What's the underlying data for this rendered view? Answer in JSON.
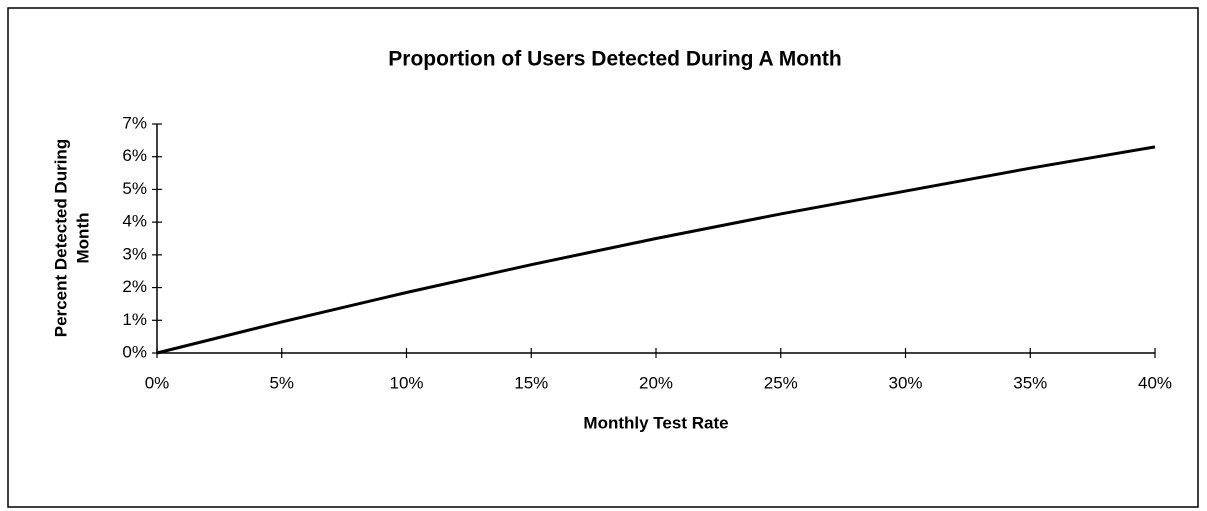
{
  "chart_data": {
    "type": "line",
    "title": "Proportion of Users Detected During A Month",
    "xlabel": "Monthly Test Rate",
    "ylabel": [
      "Percent Detected During",
      "Month"
    ],
    "x": [
      0,
      5,
      10,
      15,
      20,
      25,
      30,
      35,
      40
    ],
    "values": [
      0,
      0.95,
      1.85,
      2.7,
      3.5,
      4.25,
      4.95,
      5.65,
      6.3
    ],
    "color": "#000000",
    "xlim": [
      0,
      40
    ],
    "xticks": [
      {
        "value": 0,
        "label": "0%"
      },
      {
        "value": 5,
        "label": "5%"
      },
      {
        "value": 10,
        "label": "10%"
      },
      {
        "value": 15,
        "label": "15%"
      },
      {
        "value": 20,
        "label": "20%"
      },
      {
        "value": 25,
        "label": "25%"
      },
      {
        "value": 30,
        "label": "30%"
      },
      {
        "value": 35,
        "label": "35%"
      },
      {
        "value": 40,
        "label": "40%"
      }
    ],
    "ylim": [
      0,
      7
    ],
    "yticks": [
      {
        "value": 0,
        "label": "0%"
      },
      {
        "value": 1,
        "label": "1%"
      },
      {
        "value": 2,
        "label": "2%"
      },
      {
        "value": 3,
        "label": "3%"
      },
      {
        "value": 4,
        "label": "4%"
      },
      {
        "value": 5,
        "label": "5%"
      },
      {
        "value": 6,
        "label": "6%"
      },
      {
        "value": 7,
        "label": "7%"
      }
    ],
    "grid": false
  }
}
